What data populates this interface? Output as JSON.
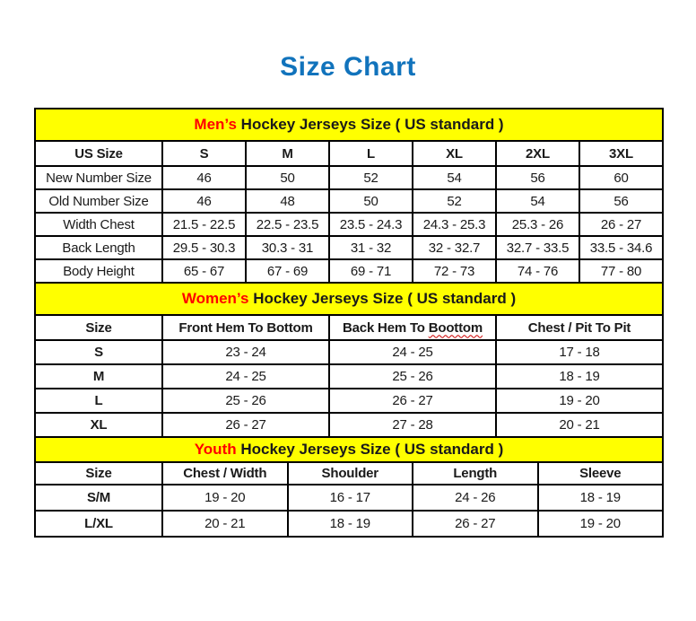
{
  "page": {
    "title": "Size Chart"
  },
  "colors": {
    "title_blue": "#1173BC",
    "banner_yellow": "#FFFF00",
    "accent_red": "#FF0000",
    "border_black": "#000000"
  },
  "men": {
    "banner": {
      "highlight": "Men’s",
      "rest": " Hockey Jerseys Size ( US standard )"
    },
    "headers": [
      "US Size",
      "S",
      "M",
      "L",
      "XL",
      "2XL",
      "3XL"
    ],
    "rows": [
      [
        "New Number Size",
        "46",
        "50",
        "52",
        "54",
        "56",
        "60"
      ],
      [
        "Old Number Size",
        "46",
        "48",
        "50",
        "52",
        "54",
        "56"
      ],
      [
        "Width Chest",
        "21.5 - 22.5",
        "22.5 - 23.5",
        "23.5 - 24.3",
        "24.3 - 25.3",
        "25.3 - 26",
        "26 - 27"
      ],
      [
        "Back Length",
        "29.5 - 30.3",
        "30.3 - 31",
        "31 - 32",
        "32 - 32.7",
        "32.7 - 33.5",
        "33.5 - 34.6"
      ],
      [
        "Body Height",
        "65 - 67",
        "67 - 69",
        "69 - 71",
        "72 - 73",
        "74 - 76",
        "77 - 80"
      ]
    ]
  },
  "women": {
    "banner": {
      "highlight": "Women’s",
      "rest": " Hockey Jerseys Size ( US standard )"
    },
    "headers": [
      "Size",
      "Front Hem To Bottom",
      "Back Hem To Boottom",
      "Chest / Pit To Pit"
    ],
    "misspell": {
      "prefix": "Back Hem To ",
      "word": "Boottom"
    },
    "rows": [
      [
        "S",
        "23 - 24",
        "24 - 25",
        "17 - 18"
      ],
      [
        "M",
        "24 - 25",
        "25 - 26",
        "18 - 19"
      ],
      [
        "L",
        "25 - 26",
        "26 - 27",
        "19 - 20"
      ],
      [
        "XL",
        "26 - 27",
        "27 - 28",
        "20 - 21"
      ]
    ]
  },
  "youth": {
    "banner": {
      "highlight": "Youth",
      "rest": " Hockey Jerseys Size ( US standard )"
    },
    "headers": [
      "Size",
      "Chest / Width",
      "Shoulder",
      "Length",
      "Sleeve"
    ],
    "rows": [
      [
        "S/M",
        "19 - 20",
        "16 - 17",
        "24 - 26",
        "18 - 19"
      ],
      [
        "L/XL",
        "20 - 21",
        "18 - 19",
        "26 - 27",
        "19 - 20"
      ]
    ]
  }
}
